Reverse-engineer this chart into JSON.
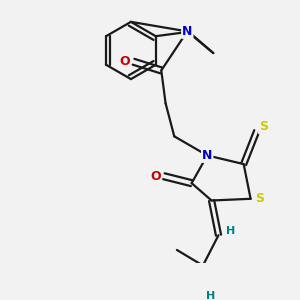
{
  "background_color": "#f2f2f2",
  "bond_color": "#1a1a1a",
  "N_color": "#0000cc",
  "O_color": "#cc0000",
  "S_color": "#cccc00",
  "H_color": "#008080",
  "line_width": 1.6,
  "figsize": [
    3.0,
    3.0
  ],
  "dpi": 100,
  "xlim": [
    0,
    300
  ],
  "ylim": [
    0,
    300
  ]
}
